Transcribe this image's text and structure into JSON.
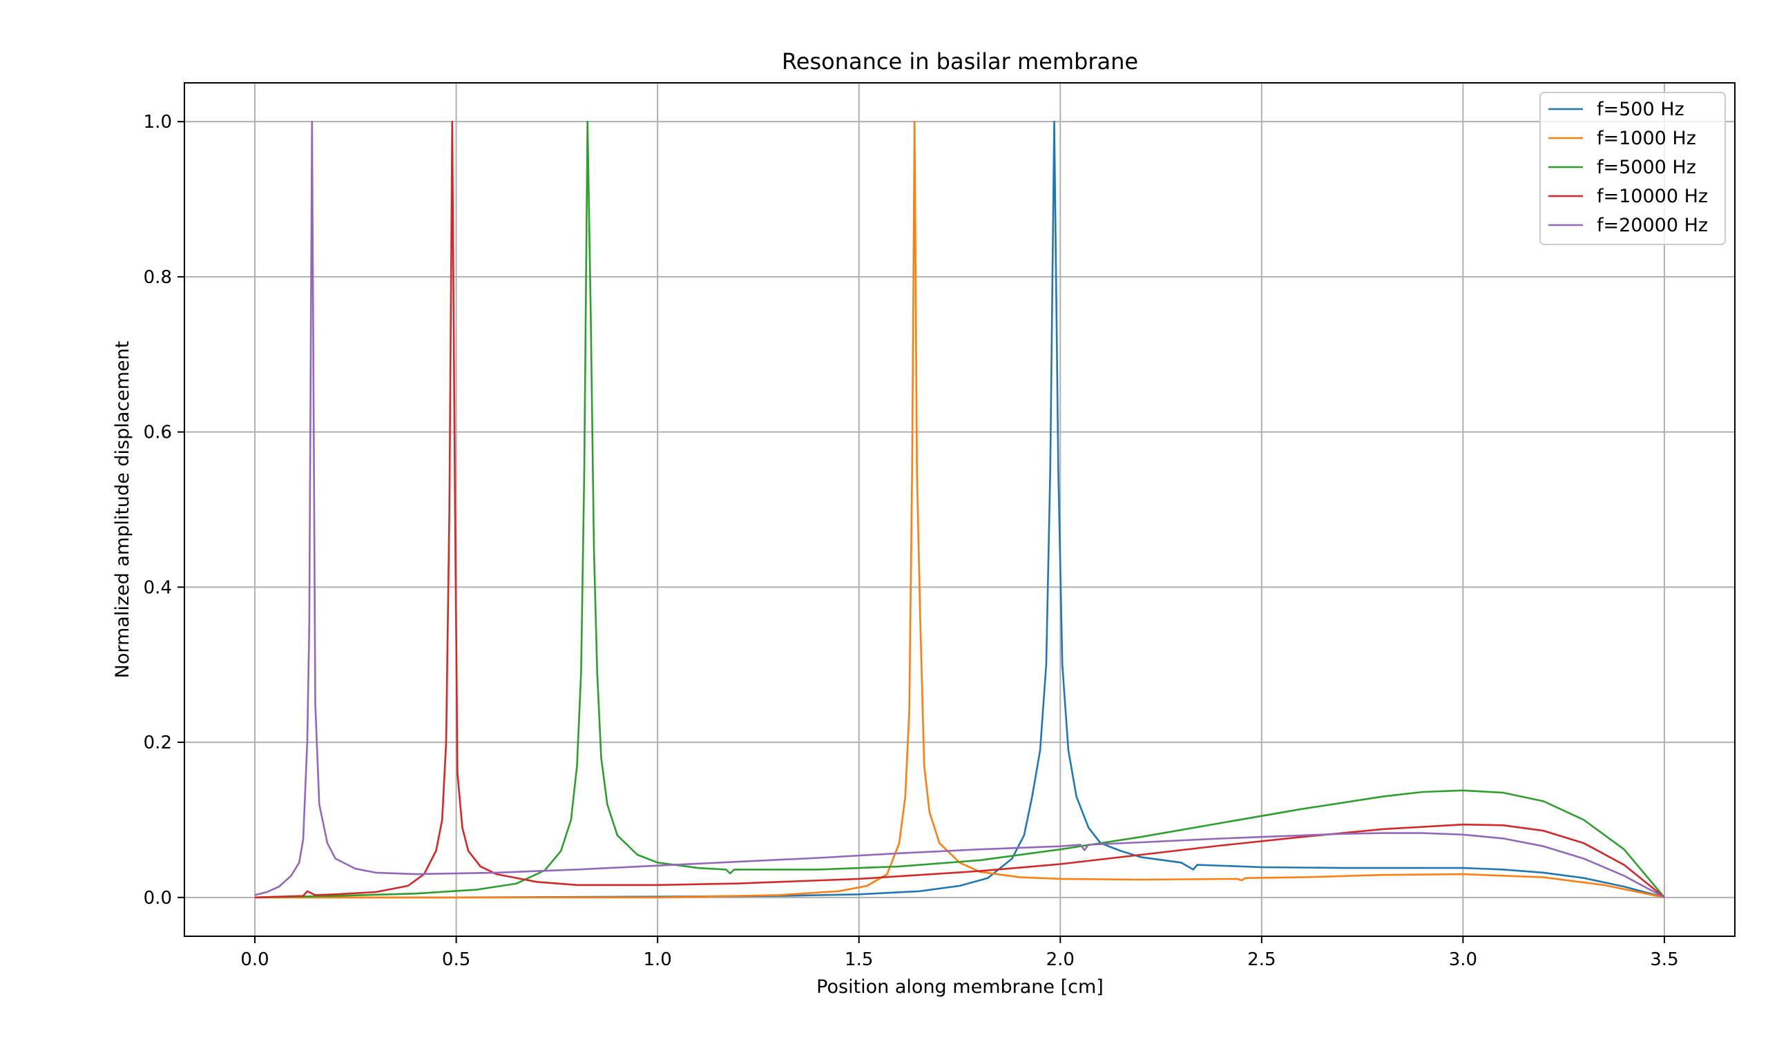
{
  "chart_data": {
    "type": "line",
    "title": "Resonance in basilar membrane",
    "xlabel": "Position along membrane [cm]",
    "ylabel": "Normalized amplitude displacement",
    "xlim": [
      -0.175,
      3.675
    ],
    "ylim": [
      -0.05,
      1.05
    ],
    "xticks": [
      0.0,
      0.5,
      1.0,
      1.5,
      2.0,
      2.5,
      3.0,
      3.5
    ],
    "xtick_labels": [
      "0.0",
      "0.5",
      "1.0",
      "1.5",
      "2.0",
      "2.5",
      "3.0",
      "3.5"
    ],
    "yticks": [
      0.0,
      0.2,
      0.4,
      0.6,
      0.8,
      1.0
    ],
    "ytick_labels": [
      "0.0",
      "0.2",
      "0.4",
      "0.6",
      "0.8",
      "1.0"
    ],
    "grid": true,
    "legend_position": "top-right",
    "series": [
      {
        "name": "f=500 Hz",
        "color": "#1f77b4",
        "points": [
          [
            0.0,
            0.0
          ],
          [
            0.5,
            0.0
          ],
          [
            1.0,
            0.001
          ],
          [
            1.3,
            0.002
          ],
          [
            1.5,
            0.004
          ],
          [
            1.65,
            0.008
          ],
          [
            1.75,
            0.015
          ],
          [
            1.82,
            0.025
          ],
          [
            1.88,
            0.05
          ],
          [
            1.91,
            0.08
          ],
          [
            1.93,
            0.13
          ],
          [
            1.95,
            0.19
          ],
          [
            1.965,
            0.3
          ],
          [
            1.975,
            0.55
          ],
          [
            1.985,
            1.0
          ],
          [
            1.995,
            0.55
          ],
          [
            2.005,
            0.3
          ],
          [
            2.02,
            0.19
          ],
          [
            2.04,
            0.13
          ],
          [
            2.07,
            0.09
          ],
          [
            2.1,
            0.07
          ],
          [
            2.15,
            0.06
          ],
          [
            2.2,
            0.052
          ],
          [
            2.3,
            0.045
          ],
          [
            2.33,
            0.036
          ],
          [
            2.34,
            0.042
          ],
          [
            2.5,
            0.039
          ],
          [
            2.7,
            0.038
          ],
          [
            2.9,
            0.038
          ],
          [
            3.0,
            0.038
          ],
          [
            3.1,
            0.036
          ],
          [
            3.2,
            0.032
          ],
          [
            3.3,
            0.025
          ],
          [
            3.4,
            0.014
          ],
          [
            3.5,
            0.0
          ]
        ]
      },
      {
        "name": "f=1000 Hz",
        "color": "#ff7f0e",
        "points": [
          [
            0.0,
            0.0
          ],
          [
            1.0,
            0.0
          ],
          [
            1.3,
            0.003
          ],
          [
            1.45,
            0.008
          ],
          [
            1.52,
            0.015
          ],
          [
            1.57,
            0.03
          ],
          [
            1.6,
            0.07
          ],
          [
            1.615,
            0.13
          ],
          [
            1.625,
            0.24
          ],
          [
            1.632,
            0.55
          ],
          [
            1.638,
            1.0
          ],
          [
            1.644,
            0.55
          ],
          [
            1.652,
            0.36
          ],
          [
            1.662,
            0.17
          ],
          [
            1.675,
            0.11
          ],
          [
            1.7,
            0.07
          ],
          [
            1.75,
            0.045
          ],
          [
            1.8,
            0.033
          ],
          [
            1.9,
            0.026
          ],
          [
            2.0,
            0.024
          ],
          [
            2.2,
            0.023
          ],
          [
            2.44,
            0.024
          ],
          [
            2.45,
            0.022
          ],
          [
            2.46,
            0.025
          ],
          [
            2.6,
            0.026
          ],
          [
            2.8,
            0.029
          ],
          [
            3.0,
            0.03
          ],
          [
            3.2,
            0.026
          ],
          [
            3.35,
            0.016
          ],
          [
            3.5,
            0.0
          ]
        ]
      },
      {
        "name": "f=5000 Hz",
        "color": "#2ca02c",
        "points": [
          [
            0.0,
            0.0
          ],
          [
            0.2,
            0.002
          ],
          [
            0.4,
            0.005
          ],
          [
            0.55,
            0.01
          ],
          [
            0.65,
            0.018
          ],
          [
            0.72,
            0.035
          ],
          [
            0.76,
            0.06
          ],
          [
            0.785,
            0.1
          ],
          [
            0.8,
            0.17
          ],
          [
            0.81,
            0.29
          ],
          [
            0.818,
            0.55
          ],
          [
            0.826,
            1.0
          ],
          [
            0.834,
            0.75
          ],
          [
            0.842,
            0.45
          ],
          [
            0.85,
            0.29
          ],
          [
            0.86,
            0.18
          ],
          [
            0.875,
            0.12
          ],
          [
            0.9,
            0.08
          ],
          [
            0.95,
            0.055
          ],
          [
            1.0,
            0.045
          ],
          [
            1.1,
            0.038
          ],
          [
            1.17,
            0.036
          ],
          [
            1.18,
            0.031
          ],
          [
            1.19,
            0.036
          ],
          [
            1.4,
            0.036
          ],
          [
            1.6,
            0.04
          ],
          [
            1.8,
            0.048
          ],
          [
            2.0,
            0.062
          ],
          [
            2.2,
            0.078
          ],
          [
            2.4,
            0.096
          ],
          [
            2.6,
            0.114
          ],
          [
            2.8,
            0.13
          ],
          [
            2.9,
            0.136
          ],
          [
            3.0,
            0.138
          ],
          [
            3.1,
            0.135
          ],
          [
            3.2,
            0.124
          ],
          [
            3.3,
            0.1
          ],
          [
            3.4,
            0.062
          ],
          [
            3.5,
            0.0
          ]
        ]
      },
      {
        "name": "f=10000 Hz",
        "color": "#d62728",
        "points": [
          [
            0.0,
            0.0
          ],
          [
            0.12,
            0.002
          ],
          [
            0.13,
            0.008
          ],
          [
            0.15,
            0.003
          ],
          [
            0.2,
            0.004
          ],
          [
            0.3,
            0.007
          ],
          [
            0.38,
            0.015
          ],
          [
            0.42,
            0.03
          ],
          [
            0.45,
            0.06
          ],
          [
            0.465,
            0.1
          ],
          [
            0.475,
            0.2
          ],
          [
            0.483,
            0.5
          ],
          [
            0.49,
            1.0
          ],
          [
            0.497,
            0.5
          ],
          [
            0.503,
            0.16
          ],
          [
            0.515,
            0.09
          ],
          [
            0.53,
            0.06
          ],
          [
            0.56,
            0.04
          ],
          [
            0.6,
            0.03
          ],
          [
            0.7,
            0.02
          ],
          [
            0.8,
            0.016
          ],
          [
            1.0,
            0.016
          ],
          [
            1.2,
            0.018
          ],
          [
            1.5,
            0.024
          ],
          [
            1.8,
            0.034
          ],
          [
            2.0,
            0.043
          ],
          [
            2.2,
            0.055
          ],
          [
            2.4,
            0.067
          ],
          [
            2.6,
            0.078
          ],
          [
            2.8,
            0.088
          ],
          [
            3.0,
            0.094
          ],
          [
            3.1,
            0.093
          ],
          [
            3.2,
            0.086
          ],
          [
            3.3,
            0.07
          ],
          [
            3.4,
            0.042
          ],
          [
            3.5,
            0.0
          ]
        ]
      },
      {
        "name": "f=20000 Hz",
        "color": "#9467bd",
        "points": [
          [
            0.0,
            0.003
          ],
          [
            0.03,
            0.007
          ],
          [
            0.06,
            0.014
          ],
          [
            0.09,
            0.028
          ],
          [
            0.11,
            0.045
          ],
          [
            0.12,
            0.075
          ],
          [
            0.13,
            0.2
          ],
          [
            0.135,
            0.35
          ],
          [
            0.142,
            1.0
          ],
          [
            0.15,
            0.25
          ],
          [
            0.16,
            0.12
          ],
          [
            0.18,
            0.07
          ],
          [
            0.2,
            0.05
          ],
          [
            0.25,
            0.037
          ],
          [
            0.3,
            0.032
          ],
          [
            0.4,
            0.03
          ],
          [
            0.6,
            0.032
          ],
          [
            0.8,
            0.036
          ],
          [
            1.0,
            0.041
          ],
          [
            1.2,
            0.046
          ],
          [
            1.4,
            0.051
          ],
          [
            1.6,
            0.057
          ],
          [
            1.8,
            0.062
          ],
          [
            2.0,
            0.066
          ],
          [
            2.05,
            0.068
          ],
          [
            2.06,
            0.061
          ],
          [
            2.07,
            0.068
          ],
          [
            2.2,
            0.071
          ],
          [
            2.4,
            0.076
          ],
          [
            2.6,
            0.08
          ],
          [
            2.7,
            0.082
          ],
          [
            2.8,
            0.083
          ],
          [
            2.9,
            0.083
          ],
          [
            3.0,
            0.081
          ],
          [
            3.1,
            0.076
          ],
          [
            3.2,
            0.066
          ],
          [
            3.3,
            0.05
          ],
          [
            3.4,
            0.028
          ],
          [
            3.5,
            0.0
          ]
        ]
      }
    ]
  }
}
